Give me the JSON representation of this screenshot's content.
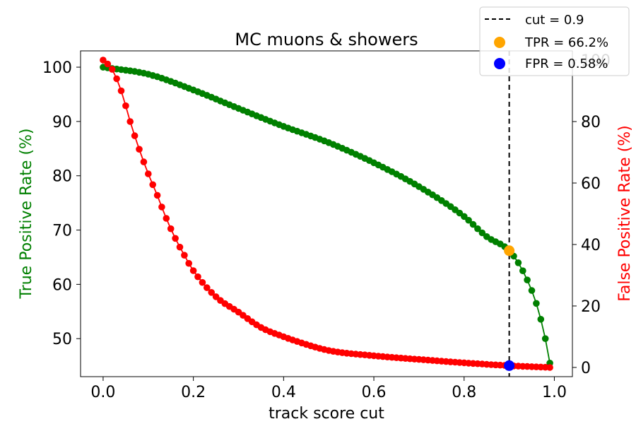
{
  "chart_data": {
    "type": "line",
    "title": "MC muons & showers",
    "xlabel": "track score cut",
    "ylabel_left": "True Positive Rate (%)",
    "ylabel_right": "False Positive Rate (%)",
    "xlim": [
      -0.05,
      1.04
    ],
    "ylim_left": [
      43,
      103
    ],
    "ylim_right": [
      -3,
      103
    ],
    "x_ticks": [
      0.0,
      0.2,
      0.4,
      0.6,
      0.8,
      1.0
    ],
    "x_tick_labels": [
      "0.0",
      "0.2",
      "0.4",
      "0.6",
      "0.8",
      "1.0"
    ],
    "y_left_ticks": [
      50,
      60,
      70,
      80,
      90,
      100
    ],
    "y_left_tick_labels": [
      "50",
      "60",
      "70",
      "80",
      "90",
      "100"
    ],
    "y_right_ticks": [
      0,
      20,
      40,
      60,
      80,
      100
    ],
    "y_right_tick_labels": [
      "0",
      "20",
      "40",
      "60",
      "80",
      "100"
    ],
    "colors": {
      "tpr": "#008000",
      "fpr": "#ff0000",
      "cut_line": "#000000",
      "tpr_marker": "#ffa500",
      "fpr_marker": "#0000ff"
    },
    "legend": {
      "placement": "top-right",
      "entries": [
        {
          "label": "cut = 0.9",
          "marker": "dashed-line"
        },
        {
          "label": "TPR = 66.2%",
          "marker": "orange-dot"
        },
        {
          "label": "FPR = 0.58%",
          "marker": "blue-dot"
        }
      ]
    },
    "cut": {
      "x": 0.9,
      "tpr": 66.2,
      "fpr": 0.58
    },
    "series": [
      {
        "axis": "left",
        "x": [
          0.0,
          0.1,
          0.2,
          0.3,
          0.4,
          0.5,
          0.6,
          0.7,
          0.8,
          0.85,
          0.9,
          0.93,
          0.96,
          0.98,
          0.99
        ],
        "y": [
          100,
          98.7,
          95.8,
          92.4,
          89.1,
          86.1,
          82.4,
          78.0,
          72.5,
          68.8,
          66.2,
          62.5,
          56.5,
          50,
          45.5
        ]
      },
      {
        "axis": "right",
        "x": [
          0.0,
          0.02,
          0.04,
          0.06,
          0.08,
          0.1,
          0.12,
          0.14,
          0.16,
          0.18,
          0.2,
          0.25,
          0.3,
          0.35,
          0.4,
          0.45,
          0.5,
          0.6,
          0.7,
          0.8,
          0.9,
          0.99
        ],
        "y": [
          100,
          97,
          90,
          80,
          71,
          63,
          56,
          48.5,
          42,
          36.5,
          31.5,
          23,
          18,
          13,
          10,
          7.5,
          5.5,
          3.8,
          2.6,
          1.5,
          0.58,
          0
        ]
      }
    ]
  }
}
